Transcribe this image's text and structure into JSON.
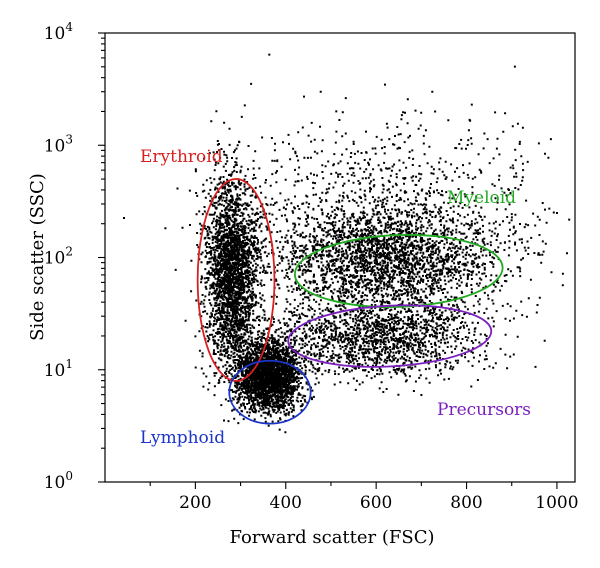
{
  "chart_data": {
    "type": "scatter",
    "title": "",
    "xlabel": "Forward scatter (FSC)",
    "ylabel": "Side scatter (SSC)",
    "xlim": [
      0,
      1040
    ],
    "ylim": [
      1,
      10000
    ],
    "yscale": "log",
    "grid": false,
    "x_ticks": [
      {
        "value": 200,
        "label": "200"
      },
      {
        "value": 400,
        "label": "400"
      },
      {
        "value": 600,
        "label": "600"
      },
      {
        "value": 800,
        "label": "800"
      },
      {
        "value": 1000,
        "label": "1000"
      }
    ],
    "y_ticks": [
      {
        "value": 1,
        "base": "10",
        "exp": "0"
      },
      {
        "value": 10,
        "base": "10",
        "exp": "1"
      },
      {
        "value": 100,
        "base": "10",
        "exp": "2"
      },
      {
        "value": 1000,
        "base": "10",
        "exp": "3"
      },
      {
        "value": 10000,
        "base": "10",
        "exp": "4"
      }
    ],
    "point_color": "#000000",
    "clusters": [
      {
        "x_center": 280,
        "x_spread": 30,
        "log10y_center": 1.85,
        "log10y_spread": 0.42,
        "density": "high"
      },
      {
        "x_center": 360,
        "x_spread": 35,
        "log10y_center": 0.95,
        "log10y_spread": 0.15,
        "density": "high"
      },
      {
        "x_center": 620,
        "x_spread": 130,
        "log10y_center": 2.0,
        "log10y_spread": 0.25,
        "density": "high"
      },
      {
        "x_center": 600,
        "x_spread": 120,
        "log10y_center": 1.3,
        "log10y_spread": 0.18,
        "density": "medium"
      },
      {
        "x_center": 620,
        "x_spread": 180,
        "log10y_center": 2.6,
        "log10y_spread": 0.35,
        "density": "sparse"
      }
    ],
    "gates": [
      {
        "name": "Erythroid",
        "color": "#d82020",
        "x_center": 290,
        "x_half_width": 85,
        "log10y_center": 1.8,
        "log10y_half_height": 0.9,
        "rotation_deg": 0
      },
      {
        "name": "Myeloid",
        "color": "#22aa22",
        "x_center": 650,
        "x_half_width": 230,
        "log10y_center": 1.88,
        "log10y_half_height": 0.32,
        "rotation_deg": -2
      },
      {
        "name": "Precursors",
        "color": "#7b1fbf",
        "x_center": 630,
        "x_half_width": 225,
        "log10y_center": 1.3,
        "log10y_half_height": 0.27,
        "rotation_deg": -3
      },
      {
        "name": "Lymphoid",
        "color": "#1a35c8",
        "x_center": 365,
        "x_half_width": 90,
        "log10y_center": 0.8,
        "log10y_half_height": 0.28,
        "rotation_deg": 0
      }
    ]
  }
}
